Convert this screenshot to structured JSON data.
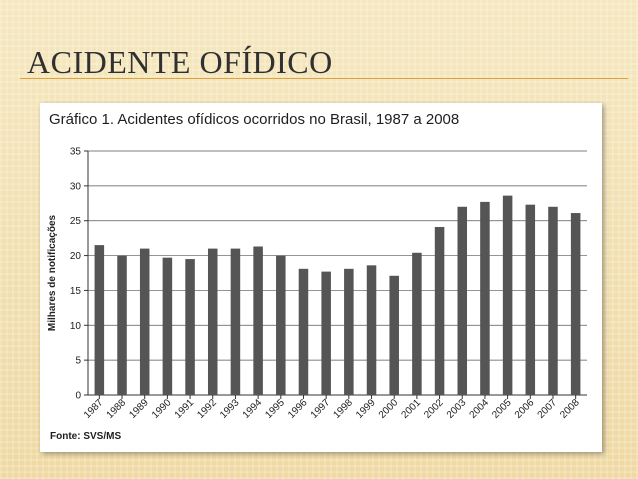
{
  "slide": {
    "title": "ACIDENTE OFÍDICO"
  },
  "chart_data": {
    "type": "bar",
    "title": "Gráfico 1. Acidentes ofídicos ocorridos no Brasil, 1987 a 2008",
    "source": "Fonte: SVS/MS",
    "xlabel": "",
    "ylabel": "Milhares de notificações",
    "ylim": [
      0,
      35
    ],
    "yticks": [
      0,
      5,
      10,
      15,
      20,
      25,
      30,
      35
    ],
    "grid": true,
    "categories": [
      "1987",
      "1988",
      "1989",
      "1990",
      "1991",
      "1992",
      "1993",
      "1994",
      "1995",
      "1996",
      "1997",
      "1998",
      "1999",
      "2000",
      "2001",
      "2002",
      "2003",
      "2004",
      "2005",
      "2006",
      "2007",
      "2008"
    ],
    "values": [
      21.5,
      20.0,
      21.0,
      19.7,
      19.5,
      21.0,
      21.0,
      21.3,
      20.0,
      18.1,
      17.7,
      18.1,
      18.6,
      17.1,
      20.4,
      24.1,
      27.0,
      27.7,
      28.6,
      27.3,
      27.0,
      26.1
    ],
    "bar_color": "#555555"
  }
}
